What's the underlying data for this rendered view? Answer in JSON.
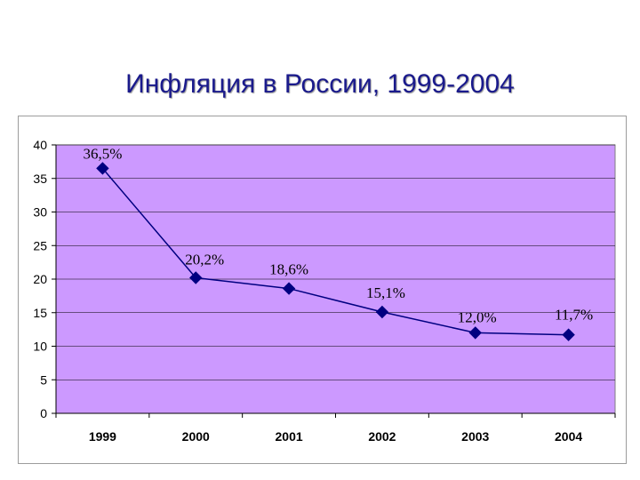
{
  "page": {
    "title": "Инфляция в России, 1999-2004"
  },
  "colors": {
    "plot_background": "#cc99ff",
    "series_line": "#000080",
    "gridline": "#000000",
    "title_text": "#1a1a8c"
  },
  "chart_data": {
    "type": "line",
    "title": "Инфляция в России, 1999-2004",
    "xlabel": "",
    "ylabel": "",
    "categories": [
      "1999",
      "2000",
      "2001",
      "2002",
      "2003",
      "2004"
    ],
    "series": [
      {
        "values": [
          36.5,
          20.2,
          18.6,
          15.1,
          12.0,
          11.7
        ],
        "data_labels": [
          "36,5%",
          "20,2%",
          "18,6%",
          "15,1%",
          "12,0%",
          "11,7%"
        ],
        "marker": "diamond"
      }
    ],
    "ylim": [
      0,
      40
    ],
    "yticks": [
      "0",
      "5",
      "10",
      "15",
      "20",
      "25",
      "30",
      "35",
      "40"
    ],
    "grid": true,
    "legend": "none"
  }
}
